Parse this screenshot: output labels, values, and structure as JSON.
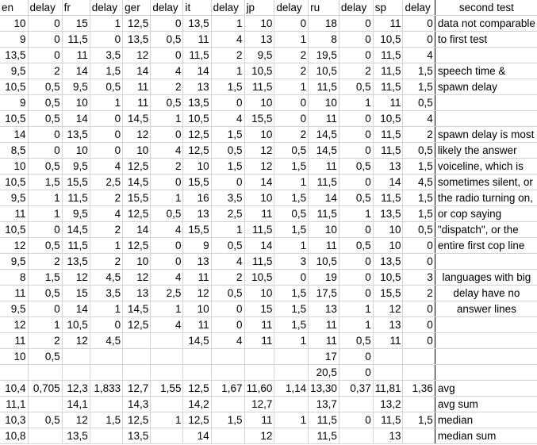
{
  "headers": [
    "en",
    "delay",
    "fr",
    "delay",
    "ger",
    "delay",
    "it",
    "delay",
    "jp",
    "delay",
    "ru",
    "delay",
    "sp",
    "delay",
    "second test"
  ],
  "rows": [
    [
      "10",
      "0",
      "15",
      "1",
      "12,5",
      "0",
      "13,5",
      "1",
      "10",
      "0",
      "18",
      "0",
      "11",
      "0",
      "data not comparable"
    ],
    [
      "9",
      "0",
      "11,5",
      "0",
      "13,5",
      "0,5",
      "11",
      "4",
      "13",
      "1",
      "8",
      "0",
      "10,5",
      "0",
      "to first test"
    ],
    [
      "13,5",
      "0",
      "11",
      "3,5",
      "12",
      "0",
      "11,5",
      "2",
      "9,5",
      "2",
      "19,5",
      "0",
      "11,5",
      "4",
      ""
    ],
    [
      "9,5",
      "2",
      "14",
      "1,5",
      "14",
      "4",
      "14",
      "1",
      "10,5",
      "2",
      "10,5",
      "2",
      "11,5",
      "1,5",
      "speech time &"
    ],
    [
      "10,5",
      "0,5",
      "9,5",
      "0,5",
      "11",
      "2",
      "13",
      "1,5",
      "11,5",
      "1",
      "11,5",
      "0,5",
      "11,5",
      "1,5",
      "spawn delay"
    ],
    [
      "9",
      "0,5",
      "10",
      "1",
      "11",
      "0,5",
      "13,5",
      "0",
      "10",
      "0",
      "10",
      "1",
      "11",
      "0,5",
      ""
    ],
    [
      "10,5",
      "0,5",
      "14",
      "0",
      "14,5",
      "1",
      "10,5",
      "4",
      "15,5",
      "0",
      "11",
      "0",
      "10,5",
      "4",
      ""
    ],
    [
      "14",
      "0",
      "13,5",
      "0",
      "12",
      "0",
      "12,5",
      "1,5",
      "10",
      "2",
      "14,5",
      "0",
      "11,5",
      "2",
      "spawn delay is most"
    ],
    [
      "8,5",
      "0",
      "10",
      "0",
      "10",
      "4",
      "12,5",
      "0,5",
      "12",
      "0,5",
      "14,5",
      "0",
      "11,5",
      "0,5",
      "likely the answer"
    ],
    [
      "10",
      "0,5",
      "9,5",
      "4",
      "12,5",
      "2",
      "10",
      "1,5",
      "12",
      "1,5",
      "11",
      "0,5",
      "13",
      "1,5",
      "voiceline, which is"
    ],
    [
      "10,5",
      "1,5",
      "15,5",
      "2,5",
      "14,5",
      "0",
      "15,5",
      "0",
      "14",
      "1",
      "11,5",
      "0",
      "14",
      "4,5",
      "sometimes silent, or"
    ],
    [
      "9,5",
      "1",
      "11,5",
      "2",
      "15,5",
      "1",
      "16",
      "3,5",
      "10",
      "1,5",
      "14",
      "0,5",
      "11,5",
      "1,5",
      "the radio turning on,"
    ],
    [
      "11",
      "1",
      "9,5",
      "4",
      "12,5",
      "0,5",
      "13",
      "2,5",
      "11",
      "0,5",
      "11,5",
      "1",
      "13,5",
      "1,5",
      "or cop saying"
    ],
    [
      "10,5",
      "0",
      "14,5",
      "2",
      "14",
      "4",
      "15,5",
      "1",
      "11,5",
      "1,5",
      "10",
      "0",
      "10",
      "0,5",
      "\"dispatch\", or the"
    ],
    [
      "12",
      "0,5",
      "11,5",
      "1",
      "12,5",
      "0",
      "9",
      "0,5",
      "14",
      "1",
      "11",
      "0,5",
      "10",
      "0",
      "entire first cop line"
    ],
    [
      "9,5",
      "2",
      "13,5",
      "2",
      "10",
      "0",
      "13",
      "4",
      "11,5",
      "3",
      "10,5",
      "0",
      "13,5",
      "0",
      ""
    ],
    [
      "8",
      "1,5",
      "12",
      "4,5",
      "12",
      "4",
      "11",
      "2",
      "10,5",
      "0",
      "19",
      "0",
      "10,5",
      "3",
      "languages with big"
    ],
    [
      "11",
      "0,5",
      "15",
      "3,5",
      "13",
      "2,5",
      "12",
      "0,5",
      "10",
      "1,5",
      "17,5",
      "0",
      "15,5",
      "2",
      "delay have no"
    ],
    [
      "9,5",
      "0",
      "14",
      "1",
      "14,5",
      "1",
      "10",
      "0",
      "15",
      "1,5",
      "13",
      "1",
      "12",
      "0",
      "answer lines"
    ],
    [
      "12",
      "1",
      "10,5",
      "0",
      "12,5",
      "4",
      "11",
      "0",
      "11",
      "1,5",
      "11",
      "1",
      "13",
      "0",
      ""
    ],
    [
      "11",
      "2",
      "12",
      "4,5",
      "",
      "",
      "14,5",
      "4",
      "11",
      "1",
      "11",
      "0,5",
      "11",
      "0",
      ""
    ],
    [
      "10",
      "0,5",
      "",
      "",
      "",
      "",
      "",
      "",
      "",
      "",
      "17",
      "0",
      "",
      "",
      ""
    ],
    [
      "",
      "",
      "",
      "",
      "",
      "",
      "",
      "",
      "",
      "",
      "20,5",
      "0",
      "",
      "",
      ""
    ],
    [
      "10,4",
      "0,705",
      "12,3",
      "1,833",
      "12,7",
      "1,55",
      "12,5",
      "1,67",
      "11,60",
      "1,14",
      "13,30",
      "0,37",
      "11,81",
      "1,36",
      "avg"
    ],
    [
      "11,1",
      "",
      "14,1",
      "",
      "14,3",
      "",
      "14,2",
      "",
      "12,7",
      "",
      "13,7",
      "",
      "13,2",
      "",
      "avg sum"
    ],
    [
      "10,3",
      "0,5",
      "12",
      "1,5",
      "12,5",
      "1",
      "12,5",
      "1,5",
      "11",
      "1",
      "11,5",
      "0",
      "11,5",
      "1,5",
      "median"
    ],
    [
      "10,8",
      "",
      "13,5",
      "",
      "13,5",
      "",
      "14",
      "",
      "12",
      "",
      "11,5",
      "",
      "13",
      "",
      "median sum"
    ]
  ]
}
